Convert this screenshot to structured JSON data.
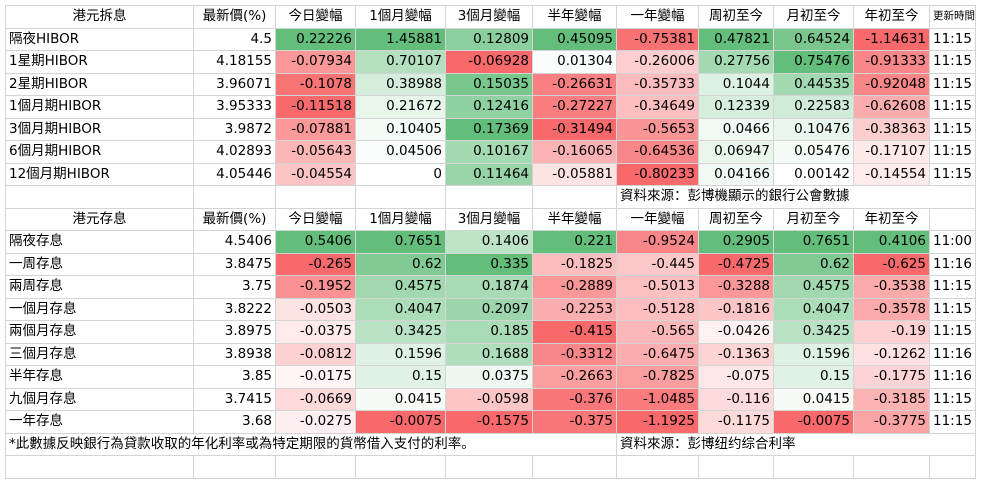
{
  "hibor": {
    "headers": [
      "港元拆息",
      "最新價(%)",
      "今日變幅",
      "1個月變幅",
      "3個月變幅",
      "半年變幅",
      "一年變幅",
      "周初至今",
      "月初至今",
      "年初至今",
      "更新時間"
    ],
    "rows": [
      {
        "name": "隔夜HIBOR",
        "cells": [
          "4.5",
          "0.22226",
          "1.45881",
          "0.12809",
          "0.45095",
          "-0.75381",
          "0.47821",
          "0.64524",
          "-1.14631"
        ],
        "time": "11:15"
      },
      {
        "name": "1星期HIBOR",
        "cells": [
          "4.18155",
          "-0.07934",
          "0.70107",
          "-0.06928",
          "0.01304",
          "-0.26006",
          "0.27756",
          "0.75476",
          "-0.91333"
        ],
        "time": "11:15"
      },
      {
        "name": "2星期HIBOR",
        "cells": [
          "3.96071",
          "-0.1078",
          "0.38988",
          "0.15035",
          "-0.26631",
          "-0.35733",
          "0.1044",
          "0.44535",
          "-0.92048"
        ],
        "time": "11:15"
      },
      {
        "name": "1個月期HIBOR",
        "cells": [
          "3.95333",
          "-0.11518",
          "0.21672",
          "0.12416",
          "-0.27227",
          "-0.34649",
          "0.12339",
          "0.22583",
          "-0.62608"
        ],
        "time": "11:15"
      },
      {
        "name": "3個月期HIBOR",
        "cells": [
          "3.9872",
          "-0.07881",
          "0.10405",
          "0.17369",
          "-0.31494",
          "-0.5653",
          "0.0466",
          "0.10476",
          "-0.38363"
        ],
        "time": "11:15"
      },
      {
        "name": "6個月期HIBOR",
        "cells": [
          "4.02893",
          "-0.05643",
          "0.04506",
          "0.10167",
          "-0.16065",
          "-0.64536",
          "0.06947",
          "0.05476",
          "-0.17107"
        ],
        "time": "11:15"
      },
      {
        "name": "12個月期HIBOR",
        "cells": [
          "4.05446",
          "-0.04554",
          "0",
          "0.11464",
          "-0.05881",
          "-0.80233",
          "0.04166",
          "0.00142",
          "-0.14554"
        ],
        "time": "11:15"
      }
    ],
    "source": "資料來源：彭博機顯示的銀行公會數據"
  },
  "deposit": {
    "headers": [
      "港元存息",
      "最新價(%)",
      "今日變幅",
      "1個月變幅",
      "3個月變幅",
      "半年變幅",
      "一年變幅",
      "周初至今",
      "月初至今",
      "年初至今",
      ""
    ],
    "rows": [
      {
        "name": "隔夜存息",
        "cells": [
          "4.5406",
          "0.5406",
          "0.7651",
          "0.1406",
          "0.221",
          "-0.9524",
          "0.2905",
          "0.7651",
          "0.4106"
        ],
        "time": "11:00"
      },
      {
        "name": "一周存息",
        "cells": [
          "3.8475",
          "-0.265",
          "0.62",
          "0.335",
          "-0.1825",
          "-0.445",
          "-0.4725",
          "0.62",
          "-0.625"
        ],
        "time": "11:16"
      },
      {
        "name": "兩周存息",
        "cells": [
          "3.75",
          "-0.1952",
          "0.4575",
          "0.1874",
          "-0.2889",
          "-0.5013",
          "-0.3288",
          "0.4575",
          "-0.3538"
        ],
        "time": "11:15"
      },
      {
        "name": "一個月存息",
        "cells": [
          "3.8222",
          "-0.0503",
          "0.4047",
          "0.2097",
          "-0.2253",
          "-0.5128",
          "-0.1816",
          "0.4047",
          "-0.3578"
        ],
        "time": "11:15"
      },
      {
        "name": "兩個月存息",
        "cells": [
          "3.8975",
          "-0.0375",
          "0.3425",
          "0.185",
          "-0.415",
          "-0.565",
          "-0.0426",
          "0.3425",
          "-0.19"
        ],
        "time": "11:15"
      },
      {
        "name": "三個月存息",
        "cells": [
          "3.8938",
          "-0.0812",
          "0.1596",
          "0.1688",
          "-0.3312",
          "-0.6475",
          "-0.1363",
          "0.1596",
          "-0.1262"
        ],
        "time": "11:16"
      },
      {
        "name": "半年存息",
        "cells": [
          "3.85",
          "-0.0175",
          "0.15",
          "0.0375",
          "-0.2663",
          "-0.7825",
          "-0.075",
          "0.15",
          "-0.1775"
        ],
        "time": "11:16"
      },
      {
        "name": "九個月存息",
        "cells": [
          "3.7415",
          "-0.0669",
          "0.0415",
          "-0.0598",
          "-0.376",
          "-1.0485",
          "-0.116",
          "0.0415",
          "-0.3185"
        ],
        "time": "11:15"
      },
      {
        "name": "一年存息",
        "cells": [
          "3.68",
          "-0.0275",
          "-0.0075",
          "-0.1575",
          "-0.375",
          "-1.1925",
          "-0.1175",
          "-0.0075",
          "-0.3775"
        ],
        "time": "11:15"
      }
    ],
    "note": "*此數據反映銀行為貸款收取的年化利率或為特定期限的貨幣借入支付的利率。",
    "source": "資料來源：彭博纽约综合利率"
  },
  "colors": {
    "positive_max": "#63be7b",
    "negative_max": "#f8696b",
    "neutral": "#ffffff",
    "grid": "#d4d4d4"
  }
}
